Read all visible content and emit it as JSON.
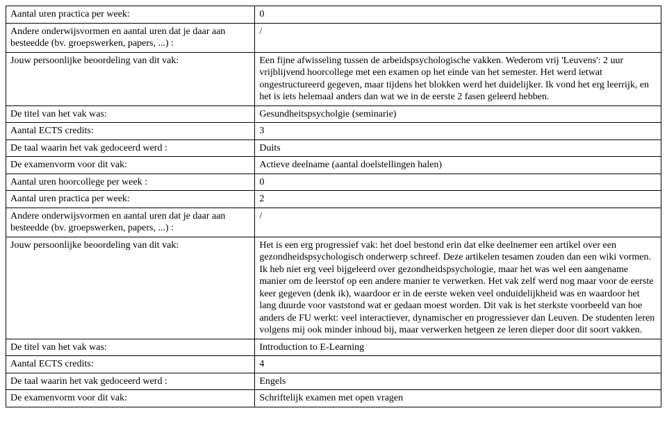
{
  "rows": [
    {
      "label": "Aantal uren practica per week:",
      "value": "0"
    },
    {
      "label": "Andere onderwijsvormen en aantal uren dat je daar aan besteedde (bv. groepswerken, papers, ...) :",
      "value": "/"
    },
    {
      "label": "Jouw persoonlijke beoordeling van dit vak:",
      "value": "Een fijne afwisseling tussen de arbeidspsychologische vakken. Wederom vrij 'Leuvens': 2 uur vrijblijvend hoorcollege met een examen op het einde van het semester. Het werd ietwat ongestructureerd gegeven, maar tijdens het blokken werd het duidelijker. Ik vond het erg leerrijk, en het is iets helemaal anders dan wat we in de eerste 2 fasen geleerd hebben."
    },
    {
      "label": "De titel van het vak was:",
      "value": "Gesundheitspsycholgie (seminarie)"
    },
    {
      "label": "Aantal ECTS credits:",
      "value": "3"
    },
    {
      "label": "De taal waarin het vak gedoceerd werd :",
      "value": "Duits"
    },
    {
      "label": "De examenvorm voor dit vak:",
      "value": "Actieve deelname (aantal doelstellingen halen)"
    },
    {
      "label": "Aantal uren hoorcollege per week :",
      "value": "0"
    },
    {
      "label": "Aantal uren practica per week:",
      "value": "2"
    },
    {
      "label": "Andere onderwijsvormen en aantal uren dat je daar aan besteedde (bv. groepswerken, papers, ...) :",
      "value": "/"
    },
    {
      "label": "Jouw persoonlijke beoordeling van dit vak:",
      "value": "Het is een erg progressief vak: het doel bestond erin dat elke deelnemer een artikel over een gezondheidspsychologisch onderwerp schreef. Deze artikelen tesamen zouden dan een wiki vormen.\nIk heb niet erg veel bijgeleerd over gezondheidspsychologie, maar het was wel een aangename manier om de leerstof op een andere manier te verwerken. Het vak zelf werd nog maar voor de eerste keer gegeven (denk ik), waardoor er in de eerste weken veel onduidelijkheid was en waardoor het lang duurde voor vaststond wat er gedaan moest worden. Dit vak is het sterkste voorbeeld van hoe anders de FU werkt: veel interactiever, dynamischer en progressiever dan Leuven. De studenten leren volgens mij ook minder inhoud bij, maar verwerken hetgeen ze leren dieper door dit soort vakken."
    },
    {
      "label": "De titel van het vak was:",
      "value": "Introduction to E-Learning"
    },
    {
      "label": "Aantal ECTS credits:",
      "value": "4"
    },
    {
      "label": "De taal waarin het vak gedoceerd werd :",
      "value": "Engels"
    },
    {
      "label": "De examenvorm voor dit vak:",
      "value": "Schriftelijk examen met open vragen"
    }
  ]
}
